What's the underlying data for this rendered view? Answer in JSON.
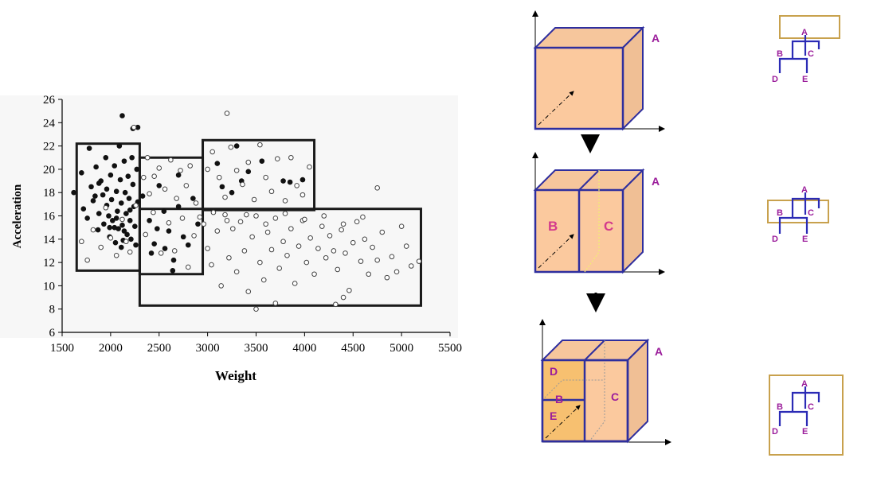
{
  "chart_data": {
    "type": "scatter",
    "xlabel": "Weight",
    "ylabel": "Acceleration",
    "xlim": [
      1500,
      5500
    ],
    "ylim": [
      6,
      26
    ],
    "x_ticks": [
      "1500",
      "2000",
      "2500",
      "3000",
      "3500",
      "4000",
      "4500",
      "5000",
      "5500"
    ],
    "y_ticks": [
      "6",
      "8",
      "10",
      "12",
      "14",
      "16",
      "18",
      "20",
      "22",
      "24",
      "26"
    ],
    "regions": [
      {
        "x": [
          1650,
          2300
        ],
        "y": [
          11.3,
          22.2
        ]
      },
      {
        "x": [
          2300,
          2950
        ],
        "y": [
          11.0,
          21.0
        ]
      },
      {
        "x": [
          2950,
          4100
        ],
        "y": [
          16.5,
          22.5
        ]
      },
      {
        "x": [
          2300,
          5200
        ],
        "y": [
          8.3,
          16.6
        ]
      }
    ],
    "series": [
      {
        "style": "filled",
        "points": [
          [
            2120,
            24.6
          ],
          [
            2280,
            23.6
          ],
          [
            2230,
            23.5
          ],
          [
            1620,
            18.0
          ],
          [
            1700,
            19.7
          ],
          [
            1720,
            16.6
          ],
          [
            1780,
            21.8
          ],
          [
            1800,
            18.5
          ],
          [
            1820,
            17.3
          ],
          [
            1850,
            20.2
          ],
          [
            1870,
            14.8
          ],
          [
            1880,
            16.2
          ],
          [
            1900,
            19.0
          ],
          [
            1920,
            17.8
          ],
          [
            1930,
            15.3
          ],
          [
            1950,
            21.0
          ],
          [
            1960,
            18.3
          ],
          [
            1980,
            16.0
          ],
          [
            1990,
            14.2
          ],
          [
            2000,
            19.5
          ],
          [
            2010,
            17.4
          ],
          [
            2020,
            15.6
          ],
          [
            2040,
            20.3
          ],
          [
            2050,
            13.7
          ],
          [
            2060,
            18.1
          ],
          [
            2070,
            16.4
          ],
          [
            2080,
            14.9
          ],
          [
            2090,
            22.0
          ],
          [
            2100,
            19.1
          ],
          [
            2110,
            17.1
          ],
          [
            2120,
            15.2
          ],
          [
            2130,
            13.9
          ],
          [
            2140,
            20.7
          ],
          [
            2150,
            18.0
          ],
          [
            2160,
            16.2
          ],
          [
            2170,
            14.4
          ],
          [
            2180,
            19.4
          ],
          [
            2190,
            17.5
          ],
          [
            2200,
            15.6
          ],
          [
            2210,
            14.0
          ],
          [
            2220,
            21.0
          ],
          [
            2230,
            18.7
          ],
          [
            2240,
            16.8
          ],
          [
            2250,
            15.1
          ],
          [
            2260,
            13.5
          ],
          [
            2270,
            20.0
          ],
          [
            2280,
            17.2
          ],
          [
            1880,
            18.8
          ],
          [
            1960,
            16.9
          ],
          [
            2040,
            15.0
          ],
          [
            2110,
            13.3
          ],
          [
            1760,
            15.8
          ],
          [
            1840,
            17.7
          ],
          [
            2200,
            16.5
          ],
          [
            2060,
            15.8
          ],
          [
            1990,
            15.0
          ],
          [
            2140,
            14.7
          ],
          [
            2330,
            17.7
          ],
          [
            2400,
            15.6
          ],
          [
            2450,
            13.6
          ],
          [
            2500,
            18.6
          ],
          [
            2550,
            16.4
          ],
          [
            2600,
            14.7
          ],
          [
            2650,
            12.2
          ],
          [
            2700,
            16.8
          ],
          [
            2750,
            14.2
          ],
          [
            2800,
            13.5
          ],
          [
            2850,
            17.5
          ],
          [
            2900,
            15.3
          ],
          [
            2420,
            12.8
          ],
          [
            2560,
            13.2
          ],
          [
            2640,
            11.3
          ],
          [
            2480,
            14.9
          ],
          [
            2700,
            19.5
          ],
          [
            3100,
            20.5
          ],
          [
            3300,
            22.0
          ],
          [
            3420,
            19.8
          ],
          [
            3560,
            20.7
          ],
          [
            3780,
            19.0
          ],
          [
            3850,
            18.9
          ],
          [
            3980,
            19.1
          ],
          [
            3150,
            18.5
          ],
          [
            3350,
            19.0
          ],
          [
            3250,
            18.0
          ]
        ]
      },
      {
        "style": "open",
        "points": [
          [
            2240,
            23.6
          ],
          [
            3200,
            24.8
          ],
          [
            4750,
            18.4
          ],
          [
            1700,
            13.8
          ],
          [
            1760,
            12.2
          ],
          [
            1820,
            14.8
          ],
          [
            1900,
            13.3
          ],
          [
            1950,
            16.7
          ],
          [
            2000,
            14.1
          ],
          [
            2060,
            12.6
          ],
          [
            2120,
            15.7
          ],
          [
            2160,
            13.8
          ],
          [
            2200,
            12.9
          ],
          [
            2260,
            16.9
          ],
          [
            2340,
            19.3
          ],
          [
            2380,
            21.0
          ],
          [
            2400,
            17.9
          ],
          [
            2450,
            19.4
          ],
          [
            2500,
            20.1
          ],
          [
            2560,
            18.3
          ],
          [
            2620,
            20.8
          ],
          [
            2680,
            17.5
          ],
          [
            2720,
            19.9
          ],
          [
            2780,
            18.6
          ],
          [
            2820,
            20.3
          ],
          [
            2880,
            17.1
          ],
          [
            2360,
            14.4
          ],
          [
            2440,
            16.3
          ],
          [
            2520,
            12.8
          ],
          [
            2600,
            15.4
          ],
          [
            2660,
            13.0
          ],
          [
            2740,
            15.8
          ],
          [
            2800,
            11.6
          ],
          [
            2860,
            14.3
          ],
          [
            2920,
            15.9
          ],
          [
            3000,
            20.0
          ],
          [
            3050,
            21.5
          ],
          [
            3120,
            19.3
          ],
          [
            3180,
            17.6
          ],
          [
            3240,
            21.9
          ],
          [
            3300,
            19.9
          ],
          [
            3360,
            18.7
          ],
          [
            3420,
            20.6
          ],
          [
            3480,
            17.4
          ],
          [
            3540,
            22.1
          ],
          [
            3600,
            19.3
          ],
          [
            3660,
            18.1
          ],
          [
            3720,
            20.9
          ],
          [
            3800,
            17.3
          ],
          [
            3860,
            21.0
          ],
          [
            3920,
            18.6
          ],
          [
            3980,
            17.8
          ],
          [
            4050,
            20.2
          ],
          [
            2960,
            15.3
          ],
          [
            3000,
            13.2
          ],
          [
            3040,
            11.8
          ],
          [
            3100,
            14.7
          ],
          [
            3140,
            10.0
          ],
          [
            3180,
            16.1
          ],
          [
            3220,
            12.4
          ],
          [
            3260,
            14.9
          ],
          [
            3300,
            11.2
          ],
          [
            3340,
            15.5
          ],
          [
            3380,
            13.0
          ],
          [
            3420,
            9.5
          ],
          [
            3460,
            14.2
          ],
          [
            3500,
            16.0
          ],
          [
            3540,
            12.0
          ],
          [
            3580,
            10.5
          ],
          [
            3620,
            14.6
          ],
          [
            3660,
            13.1
          ],
          [
            3700,
            15.8
          ],
          [
            3740,
            11.5
          ],
          [
            3780,
            13.8
          ],
          [
            3820,
            12.6
          ],
          [
            3860,
            14.9
          ],
          [
            3900,
            10.2
          ],
          [
            3940,
            13.4
          ],
          [
            3980,
            15.6
          ],
          [
            4020,
            12.0
          ],
          [
            4060,
            14.1
          ],
          [
            4100,
            11.0
          ],
          [
            4140,
            13.2
          ],
          [
            4180,
            15.1
          ],
          [
            4220,
            12.4
          ],
          [
            4260,
            14.3
          ],
          [
            4300,
            13.0
          ],
          [
            4340,
            11.4
          ],
          [
            4380,
            14.8
          ],
          [
            4420,
            12.8
          ],
          [
            4460,
            9.6
          ],
          [
            4500,
            13.7
          ],
          [
            4540,
            15.5
          ],
          [
            4580,
            12.1
          ],
          [
            4620,
            14.0
          ],
          [
            4660,
            11.0
          ],
          [
            4700,
            13.3
          ],
          [
            4750,
            12.2
          ],
          [
            4800,
            14.6
          ],
          [
            4850,
            10.7
          ],
          [
            4900,
            12.5
          ],
          [
            4950,
            11.2
          ],
          [
            5000,
            15.1
          ],
          [
            5050,
            13.4
          ],
          [
            5100,
            11.7
          ],
          [
            5180,
            12.1
          ],
          [
            3500,
            8.0
          ],
          [
            3700,
            8.5
          ],
          [
            4320,
            8.4
          ],
          [
            4400,
            9.0
          ],
          [
            3200,
            15.6
          ],
          [
            3400,
            16.1
          ],
          [
            3600,
            15.3
          ],
          [
            3800,
            16.2
          ],
          [
            4000,
            15.7
          ],
          [
            4200,
            16.0
          ],
          [
            4400,
            15.3
          ],
          [
            4600,
            15.9
          ],
          [
            3060,
            16.3
          ]
        ]
      }
    ]
  },
  "diagram": {
    "box_labels": {
      "top": "A",
      "middle": "A",
      "bottom": "A"
    },
    "split_labels": {
      "b": "B",
      "c": "C",
      "d": "D",
      "e": "E"
    },
    "trees": [
      {
        "a": "A",
        "b": "B",
        "c": "C",
        "d": "D",
        "e": "E"
      },
      {
        "a": "A",
        "b": "B",
        "c": "C",
        "d": "D",
        "e": "E"
      },
      {
        "a": "A",
        "b": "B",
        "c": "C",
        "d": "D",
        "e": "E"
      }
    ]
  }
}
